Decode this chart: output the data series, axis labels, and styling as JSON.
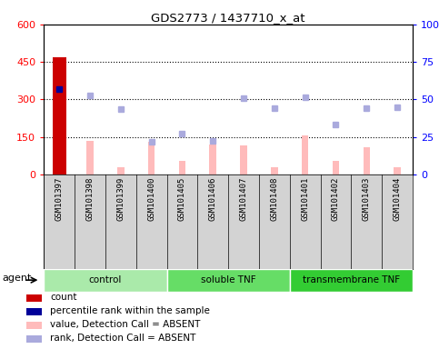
{
  "title": "GDS2773 / 1437710_x_at",
  "samples": [
    "GSM101397",
    "GSM101398",
    "GSM101399",
    "GSM101400",
    "GSM101405",
    "GSM101406",
    "GSM101407",
    "GSM101408",
    "GSM101401",
    "GSM101402",
    "GSM101403",
    "GSM101404"
  ],
  "groups": [
    {
      "name": "control",
      "indices": [
        0,
        1,
        2,
        3
      ],
      "color": "#aaeaaa"
    },
    {
      "name": "soluble TNF",
      "indices": [
        4,
        5,
        6,
        7
      ],
      "color": "#66dd66"
    },
    {
      "name": "transmembrane TNF",
      "indices": [
        8,
        9,
        10,
        11
      ],
      "color": "#33cc33"
    }
  ],
  "count_values": [
    470,
    0,
    0,
    0,
    0,
    0,
    0,
    0,
    0,
    0,
    0,
    0
  ],
  "percentile_rank_values": [
    57,
    null,
    null,
    null,
    null,
    null,
    null,
    null,
    null,
    null,
    null,
    null
  ],
  "absent_value_bars": [
    null,
    135,
    28,
    130,
    55,
    120,
    115,
    28,
    155,
    55,
    110,
    28
  ],
  "absent_rank_dots": [
    null,
    315,
    260,
    130,
    165,
    135,
    305,
    265,
    310,
    200,
    265,
    270
  ],
  "ylim_left": [
    0,
    600
  ],
  "left_yticks": [
    0,
    150,
    300,
    450,
    600
  ],
  "right_yticks": [
    0,
    25,
    50,
    75,
    100
  ],
  "right_yticklabels": [
    "0",
    "25",
    "50",
    "75",
    "100%"
  ],
  "hlines": [
    150,
    300,
    450
  ],
  "count_color": "#cc0000",
  "percentile_color": "#000099",
  "absent_value_color": "#ffbbbb",
  "absent_rank_color": "#aaaadd",
  "agent_label": "agent",
  "legend_items": [
    {
      "label": "count",
      "color": "#cc0000"
    },
    {
      "label": "percentile rank within the sample",
      "color": "#000099"
    },
    {
      "label": "value, Detection Call = ABSENT",
      "color": "#ffbbbb"
    },
    {
      "label": "rank, Detection Call = ABSENT",
      "color": "#aaaadd"
    }
  ]
}
